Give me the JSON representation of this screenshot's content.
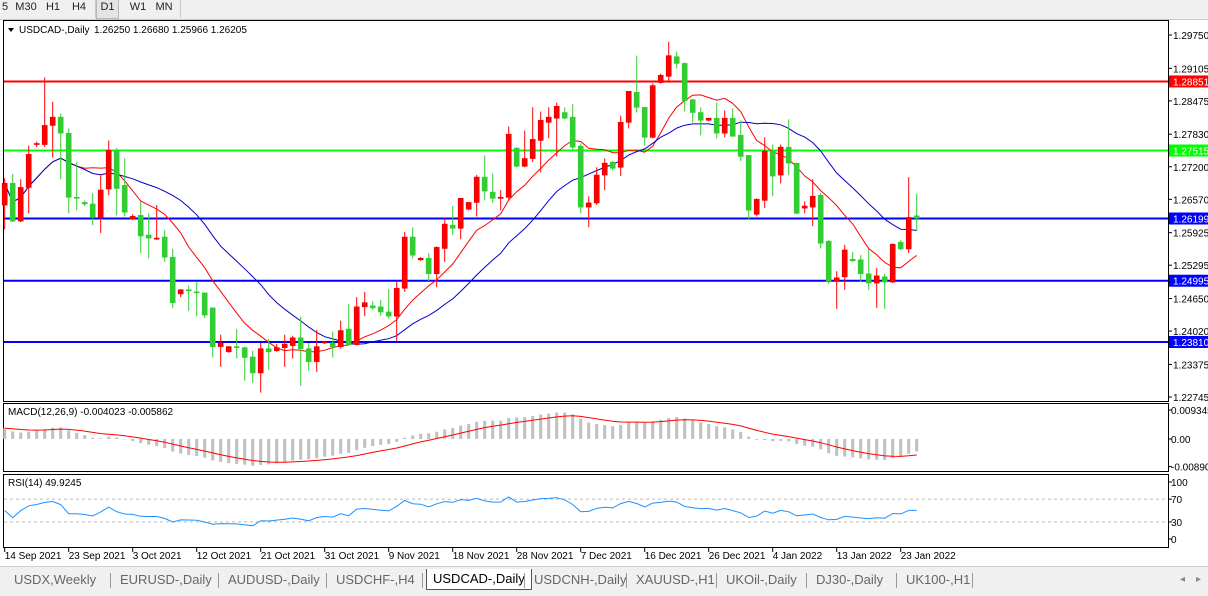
{
  "toolbar": {
    "timeframes": [
      "5",
      "M30",
      "H1",
      "H4",
      "D1",
      "W1",
      "MN"
    ],
    "active": "D1"
  },
  "chart": {
    "symbol_header": "USDCAD-,Daily",
    "ohlc_header": "1.26250 1.26680 1.25966 1.26205",
    "colors": {
      "bull": "#ff0000",
      "bear": "#32cd32",
      "ma_fast": "#ff0000",
      "ma_slow": "#0000cd",
      "macd_hist": "#c0c0c0",
      "macd_signal": "#ff0000",
      "rsi": "#1e90ff"
    },
    "price_ticks": [
      "1.29750",
      "1.29105",
      "1.28475",
      "1.27830",
      "1.27200",
      "1.26570",
      "1.25925",
      "1.25295",
      "1.24650",
      "1.24020",
      "1.23375",
      "1.22745"
    ],
    "levels": [
      {
        "price": "1.28851",
        "color": "#ff0000"
      },
      {
        "price": "1.27515",
        "color": "#00ff00"
      },
      {
        "price": "1.26199",
        "color": "#0000ff"
      },
      {
        "price": "1.24995",
        "color": "#0000ff"
      },
      {
        "price": "1.23810",
        "color": "#0000ff"
      }
    ],
    "date_labels": [
      "14 Sep 2021",
      "23 Sep 2021",
      "3 Oct 2021",
      "12 Oct 2021",
      "21 Oct 2021",
      "31 Oct 2021",
      "9 Nov 2021",
      "18 Nov 2021",
      "28 Nov 2021",
      "7 Dec 2021",
      "16 Dec 2021",
      "26 Dec 2021",
      "4 Jan 2022",
      "13 Jan 2022",
      "23 Jan 2022"
    ]
  },
  "macd": {
    "label": "MACD(12,26,9) -0.004023 -0.005862",
    "ticks": [
      "0.009345",
      "0.00",
      "-0.008902"
    ]
  },
  "rsi": {
    "label": "RSI(14) 49.9245",
    "ticks": [
      "100",
      "70",
      "30",
      "0"
    ]
  },
  "chart_data": {
    "type": "candlestick",
    "ylim": [
      1.22745,
      1.2975
    ],
    "ohlc": [
      [
        1.2646,
        1.2698,
        1.2599,
        1.2688
      ],
      [
        1.2688,
        1.2706,
        1.2613,
        1.2615
      ],
      [
        1.2615,
        1.2696,
        1.2613,
        1.268
      ],
      [
        1.268,
        1.2761,
        1.263,
        1.2744
      ],
      [
        1.2764,
        1.2769,
        1.2758,
        1.2765
      ],
      [
        1.2763,
        1.2893,
        1.2758,
        1.28
      ],
      [
        1.28,
        1.2846,
        1.2738,
        1.2816
      ],
      [
        1.2816,
        1.2823,
        1.2696,
        1.2785
      ],
      [
        1.2785,
        1.2794,
        1.263,
        1.2661
      ],
      [
        1.2661,
        1.2729,
        1.2636,
        1.2659
      ],
      [
        1.2651,
        1.2655,
        1.2644,
        1.2648
      ],
      [
        1.2648,
        1.2669,
        1.2607,
        1.2622
      ],
      [
        1.2622,
        1.2706,
        1.2592,
        1.2675
      ],
      [
        1.2677,
        1.2771,
        1.2665,
        1.2752
      ],
      [
        1.2752,
        1.2756,
        1.2626,
        1.2678
      ],
      [
        1.2684,
        1.2736,
        1.2624,
        1.2632
      ],
      [
        1.2619,
        1.2628,
        1.2617,
        1.2624
      ],
      [
        1.2626,
        1.2653,
        1.2553,
        1.2586
      ],
      [
        1.2588,
        1.263,
        1.2543,
        1.2582
      ],
      [
        1.258,
        1.2646,
        1.2578,
        1.2582
      ],
      [
        1.2584,
        1.2597,
        1.2536,
        1.2545
      ],
      [
        1.2545,
        1.2561,
        1.2447,
        1.2457
      ],
      [
        1.2474,
        1.2483,
        1.2468,
        1.2482
      ],
      [
        1.2482,
        1.249,
        1.2441,
        1.248
      ],
      [
        1.2478,
        1.2497,
        1.2431,
        1.2476
      ],
      [
        1.2476,
        1.2476,
        1.2427,
        1.2433
      ],
      [
        1.2447,
        1.2447,
        1.2351,
        1.2372
      ],
      [
        1.2372,
        1.2395,
        1.2333,
        1.2379
      ],
      [
        1.2362,
        1.2373,
        1.236,
        1.2372
      ],
      [
        1.2372,
        1.2406,
        1.2349,
        1.237
      ],
      [
        1.237,
        1.2372,
        1.2306,
        1.2351
      ],
      [
        1.2352,
        1.2364,
        1.2302,
        1.2321
      ],
      [
        1.2321,
        1.2379,
        1.2283,
        1.2368
      ],
      [
        1.2368,
        1.2387,
        1.2327,
        1.2362
      ],
      [
        1.2364,
        1.2377,
        1.2362,
        1.237
      ],
      [
        1.237,
        1.2395,
        1.2333,
        1.2377
      ],
      [
        1.2374,
        1.2393,
        1.2349,
        1.2389
      ],
      [
        1.2389,
        1.243,
        1.2296,
        1.2368
      ],
      [
        1.2368,
        1.2379,
        1.2325,
        1.2343
      ],
      [
        1.2343,
        1.2404,
        1.2323,
        1.2372
      ],
      [
        1.2379,
        1.2383,
        1.2377,
        1.2381
      ],
      [
        1.2379,
        1.2401,
        1.2351,
        1.2372
      ],
      [
        1.2372,
        1.2422,
        1.2368,
        1.2403
      ],
      [
        1.2406,
        1.2454,
        1.2374,
        1.2376
      ],
      [
        1.2376,
        1.2468,
        1.2374,
        1.2449
      ],
      [
        1.2449,
        1.2478,
        1.2431,
        1.2457
      ],
      [
        1.2451,
        1.246,
        1.2443,
        1.2447
      ],
      [
        1.2449,
        1.2462,
        1.2431,
        1.2439
      ],
      [
        1.2439,
        1.2483,
        1.2426,
        1.2431
      ],
      [
        1.2431,
        1.2499,
        1.2383,
        1.2485
      ],
      [
        1.2485,
        1.2594,
        1.2478,
        1.2584
      ],
      [
        1.2584,
        1.2603,
        1.2543,
        1.2549
      ],
      [
        1.254,
        1.2545,
        1.2538,
        1.2543
      ],
      [
        1.2543,
        1.2553,
        1.2499,
        1.2513
      ],
      [
        1.2513,
        1.2566,
        1.2487,
        1.2564
      ],
      [
        1.2562,
        1.262,
        1.2536,
        1.2609
      ],
      [
        1.2607,
        1.2644,
        1.2588,
        1.2601
      ],
      [
        1.2601,
        1.2659,
        1.258,
        1.2659
      ],
      [
        1.2638,
        1.2651,
        1.2636,
        1.2651
      ],
      [
        1.2651,
        1.2704,
        1.2624,
        1.27
      ],
      [
        1.27,
        1.2742,
        1.2655,
        1.2673
      ],
      [
        1.2671,
        1.2707,
        1.265,
        1.2659
      ],
      [
        1.2659,
        1.2675,
        1.2636,
        1.2661
      ],
      [
        1.2661,
        1.2798,
        1.2657,
        1.2783
      ],
      [
        1.2756,
        1.2758,
        1.2719,
        1.2721
      ],
      [
        1.2721,
        1.279,
        1.2719,
        1.2736
      ],
      [
        1.2736,
        1.2835,
        1.2729,
        1.2773
      ],
      [
        1.2771,
        1.2827,
        1.2709,
        1.281
      ],
      [
        1.2806,
        1.2835,
        1.2775,
        1.2816
      ],
      [
        1.2814,
        1.2844,
        1.274,
        1.2837
      ],
      [
        1.2825,
        1.2835,
        1.2812,
        1.2814
      ],
      [
        1.2816,
        1.2841,
        1.2752,
        1.2758
      ],
      [
        1.276,
        1.2765,
        1.263,
        1.2642
      ],
      [
        1.2642,
        1.2663,
        1.2603,
        1.265
      ],
      [
        1.265,
        1.2719,
        1.2646,
        1.2704
      ],
      [
        1.2704,
        1.2736,
        1.2675,
        1.2727
      ],
      [
        1.2729,
        1.2731,
        1.2713,
        1.2717
      ],
      [
        1.2719,
        1.2819,
        1.2702,
        1.2806
      ],
      [
        1.2806,
        1.2866,
        1.2794,
        1.2866
      ],
      [
        1.2864,
        1.2935,
        1.2825,
        1.2835
      ],
      [
        1.2835,
        1.2835,
        1.2761,
        1.2777
      ],
      [
        1.2777,
        1.2881,
        1.2775,
        1.2877
      ],
      [
        1.2883,
        1.29,
        1.2881,
        1.2897
      ],
      [
        1.2895,
        1.2962,
        1.2883,
        1.2935
      ],
      [
        1.2933,
        1.2943,
        1.291,
        1.292
      ],
      [
        1.292,
        1.2922,
        1.2827,
        1.2848
      ],
      [
        1.285,
        1.285,
        1.2806,
        1.2825
      ],
      [
        1.2825,
        1.2835,
        1.2781,
        1.281
      ],
      [
        1.281,
        1.2814,
        1.2808,
        1.2814
      ],
      [
        1.2814,
        1.2844,
        1.2775,
        1.2785
      ],
      [
        1.2785,
        1.2829,
        1.2777,
        1.2814
      ],
      [
        1.2814,
        1.2833,
        1.2779,
        1.2779
      ],
      [
        1.2781,
        1.281,
        1.2731,
        1.274
      ],
      [
        1.2742,
        1.2742,
        1.2619,
        1.2636
      ],
      [
        1.2628,
        1.2659,
        1.2624,
        1.2657
      ],
      [
        1.2655,
        1.2777,
        1.264,
        1.275
      ],
      [
        1.275,
        1.2763,
        1.2663,
        1.2702
      ],
      [
        1.2704,
        1.2763,
        1.2688,
        1.2758
      ],
      [
        1.2758,
        1.2812,
        1.2704,
        1.2727
      ],
      [
        1.2727,
        1.2727,
        1.2628,
        1.263
      ],
      [
        1.264,
        1.2653,
        1.263,
        1.2644
      ],
      [
        1.2642,
        1.2696,
        1.2605,
        1.2663
      ],
      [
        1.2665,
        1.2669,
        1.2562,
        1.2572
      ],
      [
        1.2576,
        1.2578,
        1.2493,
        1.2499
      ],
      [
        1.2499,
        1.2518,
        1.2445,
        1.2505
      ],
      [
        1.2507,
        1.2569,
        1.2482,
        1.2559
      ],
      [
        1.2541,
        1.2555,
        1.2536,
        1.2538
      ],
      [
        1.254,
        1.2549,
        1.2497,
        1.2513
      ],
      [
        1.2513,
        1.2561,
        1.2482,
        1.2495
      ],
      [
        1.2495,
        1.2524,
        1.2447,
        1.2509
      ],
      [
        1.2507,
        1.2513,
        1.2445,
        1.2497
      ],
      [
        1.2497,
        1.2572,
        1.2495,
        1.257
      ],
      [
        1.2574,
        1.2578,
        1.2559,
        1.2561
      ],
      [
        1.2561,
        1.27,
        1.2553,
        1.2622
      ],
      [
        1.2625,
        1.2668,
        1.25966,
        1.26205
      ]
    ]
  },
  "tabs": {
    "items": [
      "USDX,Weekly",
      "EURUSD-,Daily",
      "AUDUSD-,Daily",
      "USDCHF-,H4",
      "USDCAD-,Daily",
      "USDCNH-,Daily",
      "XAUUSD-,H1",
      "UKOil-,Daily",
      "DJ30-,Daily",
      "UK100-,H1"
    ],
    "active": "USDCAD-,Daily"
  }
}
